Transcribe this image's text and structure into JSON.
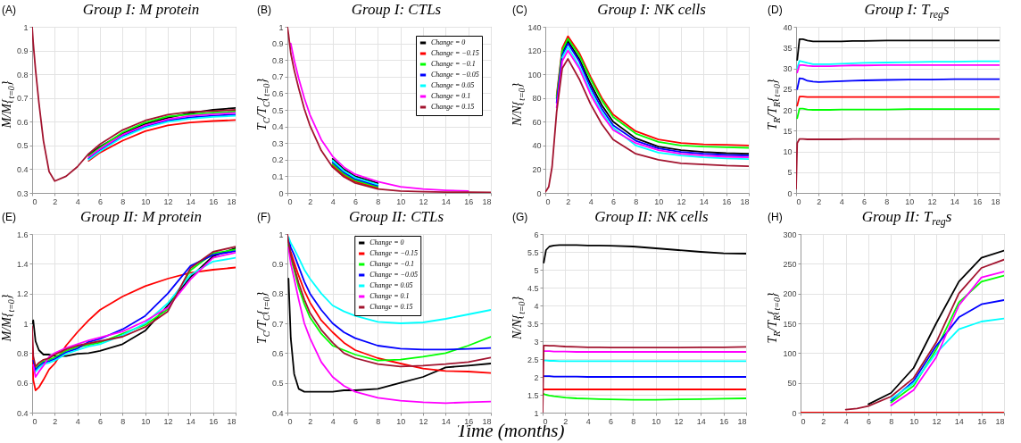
{
  "chart_data": [
    {
      "type": "line",
      "title": "Group I: M protein",
      "ylabel": "M/M{$_{t=0}$}",
      "annotations": [
        "(A)"
      ],
      "x": [
        0,
        0.1,
        0.3,
        0.6,
        1,
        1.5,
        2,
        3,
        4,
        5,
        6,
        8,
        10,
        12,
        14,
        16,
        18
      ],
      "xlim": [
        0,
        18
      ],
      "xticks": [
        0,
        2,
        4,
        6,
        8,
        10,
        12,
        14,
        16,
        18
      ],
      "ylim": [
        0.3,
        1
      ],
      "yticks": [
        0.3,
        0.4,
        0.5,
        0.6,
        0.7,
        0.8,
        0.9,
        1
      ],
      "grid": true,
      "series": [
        {
          "color": "#000000",
          "values": [
            null,
            null,
            null,
            null,
            null,
            null,
            null,
            null,
            null,
            0.46,
            0.495,
            0.55,
            0.59,
            0.617,
            0.636,
            0.65,
            0.658
          ]
        },
        {
          "color": "#ff0000",
          "values": [
            null,
            null,
            null,
            null,
            null,
            null,
            null,
            null,
            null,
            0.435,
            0.47,
            0.52,
            0.56,
            0.585,
            0.597,
            0.603,
            0.607
          ]
        },
        {
          "color": "#00ff00",
          "values": [
            null,
            null,
            null,
            null,
            null,
            null,
            null,
            null,
            null,
            0.455,
            0.49,
            0.555,
            0.597,
            0.622,
            0.631,
            0.638,
            0.643
          ]
        },
        {
          "color": "#0000ff",
          "values": [
            null,
            null,
            null,
            null,
            null,
            null,
            null,
            null,
            null,
            0.445,
            0.48,
            0.54,
            0.58,
            0.605,
            0.618,
            0.625,
            0.63
          ]
        },
        {
          "color": "#00ffff",
          "values": [
            null,
            null,
            null,
            null,
            null,
            null,
            null,
            null,
            null,
            0.44,
            0.475,
            0.535,
            0.575,
            0.6,
            0.613,
            0.62,
            0.625
          ]
        },
        {
          "color": "#ff00ff",
          "values": [
            null,
            null,
            null,
            null,
            null,
            null,
            null,
            null,
            null,
            0.45,
            0.485,
            0.545,
            0.585,
            0.61,
            0.625,
            0.632,
            0.637
          ]
        },
        {
          "color": "#a2142f",
          "values": [
            1,
            0.93,
            0.82,
            0.68,
            0.52,
            0.39,
            0.35,
            0.37,
            0.41,
            0.465,
            0.505,
            0.565,
            0.605,
            0.63,
            0.642,
            0.645,
            0.65
          ]
        }
      ]
    },
    {
      "type": "line",
      "title": "Group I: CTLs",
      "ylabel": "T$_{C}$/T$_{C}${$_{t=0}$}",
      "annotations": [
        "(B)"
      ],
      "x": [
        0,
        0.1,
        0.3,
        0.6,
        1,
        1.5,
        2,
        3,
        4,
        5,
        6,
        8,
        10,
        12,
        14,
        16,
        18
      ],
      "xlim": [
        0,
        18
      ],
      "xticks": [
        0,
        2,
        4,
        6,
        8,
        10,
        12,
        14,
        16,
        18
      ],
      "ylim": [
        0,
        1
      ],
      "yticks": [
        0,
        0.1,
        0.2,
        0.3,
        0.4,
        0.5,
        0.6,
        0.7,
        0.8,
        0.9,
        1
      ],
      "grid": true,
      "legend": "top right",
      "series": [
        {
          "name": "Change = 0",
          "color": "#000000",
          "values": [
            null,
            null,
            null,
            null,
            null,
            null,
            null,
            null,
            0.205,
            0.142,
            0.1,
            0.058,
            null,
            null,
            null,
            null,
            null
          ]
        },
        {
          "name": "Change = −0.15",
          "color": "#ff0000",
          "values": [
            null,
            null,
            null,
            null,
            null,
            null,
            null,
            null,
            0.165,
            0.106,
            0.068,
            0.03,
            null,
            null,
            null,
            null,
            null
          ]
        },
        {
          "name": "Change = −0.1",
          "color": "#00ff00",
          "values": [
            null,
            null,
            null,
            null,
            null,
            null,
            null,
            null,
            0.175,
            0.115,
            0.076,
            0.037,
            null,
            null,
            null,
            null,
            null
          ]
        },
        {
          "name": "Change = −0.05",
          "color": "#0000ff",
          "values": [
            null,
            null,
            null,
            null,
            null,
            null,
            null,
            null,
            0.185,
            0.124,
            0.084,
            0.044,
            null,
            null,
            null,
            null,
            null
          ]
        },
        {
          "name": "Change = 0.05",
          "color": "#00ffff",
          "values": [
            null,
            null,
            null,
            null,
            null,
            null,
            null,
            null,
            0.195,
            0.133,
            0.092,
            0.051,
            null,
            null,
            null,
            null,
            null
          ]
        },
        {
          "name": "Change = 0.1",
          "color": "#ff00ff",
          "values": [
            null,
            null,
            0.9,
            0.8,
            0.69,
            0.57,
            0.47,
            0.32,
            0.22,
            0.155,
            0.112,
            0.068,
            0.037,
            0.024,
            0.016,
            0.011,
            null
          ]
        },
        {
          "name": "Change = 0.15",
          "color": "#a2142f",
          "values": [
            1,
            0.955,
            0.84,
            0.74,
            0.63,
            0.505,
            0.405,
            0.255,
            0.155,
            0.097,
            0.06,
            0.023,
            0.011,
            0.007,
            0.005,
            0.004,
            0.003
          ]
        }
      ]
    },
    {
      "type": "line",
      "title": "Group I: NK cells",
      "ylabel": "N/N{$_{t=0}$}",
      "annotations": [
        "(C)"
      ],
      "x": [
        0,
        0.1,
        0.3,
        0.6,
        1,
        1.5,
        2,
        3,
        4,
        5,
        6,
        8,
        10,
        12,
        14,
        16,
        18
      ],
      "xlim": [
        0,
        18
      ],
      "xticks": [
        0,
        2,
        4,
        6,
        8,
        10,
        12,
        14,
        16,
        18
      ],
      "ylim": [
        0,
        140
      ],
      "yticks": [
        0,
        20,
        40,
        60,
        80,
        100,
        120,
        140
      ],
      "grid": true,
      "series": [
        {
          "color": "#000000",
          "values": [
            null,
            null,
            null,
            null,
            null,
            118,
            128,
            113,
            92,
            74,
            60,
            46,
            39,
            36,
            34.5,
            33.5,
            33
          ]
        },
        {
          "color": "#ff0000",
          "values": [
            null,
            null,
            null,
            null,
            82,
            122,
            132,
            118,
            98,
            80,
            66,
            52,
            45,
            42,
            41,
            40.5,
            40
          ]
        },
        {
          "color": "#00ff00",
          "values": [
            null,
            null,
            null,
            null,
            80,
            120,
            130,
            116,
            96,
            78,
            64,
            50,
            43,
            40,
            39,
            38.5,
            38
          ]
        },
        {
          "color": "#0000ff",
          "values": [
            null,
            null,
            null,
            null,
            76,
            116,
            126,
            111,
            89,
            71,
            57,
            44,
            37.5,
            34.5,
            33,
            32,
            31.5
          ]
        },
        {
          "color": "#00ffff",
          "values": [
            null,
            null,
            null,
            null,
            null,
            114,
            123,
            107,
            86,
            68,
            55,
            40,
            34,
            31.5,
            30,
            29,
            28.5
          ]
        },
        {
          "color": "#ff00ff",
          "values": [
            null,
            null,
            null,
            null,
            72,
            111,
            120,
            105,
            83,
            66,
            53,
            42,
            36,
            33,
            31.5,
            30.5,
            30
          ]
        },
        {
          "color": "#a2142f",
          "values": [
            1,
            2,
            5,
            22,
            68,
            105,
            113,
            96,
            75,
            58,
            45,
            33,
            28,
            25,
            24,
            23,
            22.5
          ]
        }
      ]
    },
    {
      "type": "line",
      "title": "Group I: T$_{reg}$s",
      "ylabel": "T$_{R}$/T$_{R}${$_{t=0}$}",
      "annotations": [
        "(D)"
      ],
      "x": [
        0,
        0.1,
        0.3,
        0.6,
        1,
        1.5,
        2,
        3,
        4,
        5,
        6,
        8,
        10,
        12,
        14,
        16,
        18
      ],
      "xlim": [
        0,
        18
      ],
      "xticks": [
        0,
        2,
        4,
        6,
        8,
        10,
        12,
        14,
        16,
        18
      ],
      "ylim": [
        0,
        40
      ],
      "yticks": [
        0,
        5,
        10,
        15,
        20,
        25,
        30,
        35,
        40
      ],
      "grid": true,
      "series": [
        {
          "color": "#000000",
          "values": [
            null,
            32,
            37,
            37,
            36.7,
            36.5,
            36.5,
            36.5,
            36.5,
            36.6,
            36.6,
            36.7,
            36.7,
            36.7,
            36.7,
            36.7,
            36.7
          ]
        },
        {
          "color": "#ff0000",
          "values": [
            null,
            21,
            23.2,
            23.2,
            23.1,
            23.1,
            23.1,
            23.1,
            23.1,
            23.1,
            23.1,
            23.1,
            23.1,
            23.1,
            23.1,
            23.1,
            23.1
          ]
        },
        {
          "color": "#00ff00",
          "values": [
            null,
            18,
            20.3,
            20.3,
            20.1,
            20,
            20,
            20,
            20.1,
            20.1,
            20.1,
            20.1,
            20.2,
            20.2,
            20.2,
            20.2,
            20.2
          ]
        },
        {
          "color": "#0000ff",
          "values": [
            null,
            25,
            27.6,
            27.5,
            27,
            26.8,
            26.7,
            26.8,
            26.9,
            27,
            27.1,
            27.2,
            27.3,
            27.3,
            27.4,
            27.4,
            27.4
          ]
        },
        {
          "color": "#00ffff",
          "values": [
            null,
            30,
            31.8,
            31.6,
            31.3,
            31,
            31,
            31,
            31.1,
            31.2,
            31.3,
            31.4,
            31.5,
            31.6,
            31.6,
            31.7,
            31.7
          ]
        },
        {
          "color": "#ff00ff",
          "values": [
            null,
            29,
            30.8,
            30.8,
            30.6,
            30.5,
            30.5,
            30.5,
            30.6,
            30.7,
            30.7,
            30.8,
            30.8,
            30.8,
            30.8,
            30.8,
            30.8
          ]
        },
        {
          "color": "#a2142f",
          "values": [
            1,
            12,
            13,
            13,
            12.9,
            12.9,
            12.9,
            12.9,
            12.9,
            13,
            13,
            13,
            13,
            13,
            13,
            13,
            13
          ]
        }
      ]
    },
    {
      "type": "line",
      "title": "Group II: M protein",
      "ylabel": "M/M{$_{t=0}$}",
      "annotations": [
        "(E)"
      ],
      "x": [
        0,
        0.1,
        0.3,
        0.6,
        1,
        1.5,
        2,
        3,
        4,
        5,
        6,
        8,
        10,
        12,
        14,
        16,
        18
      ],
      "xlim": [
        0,
        18
      ],
      "xticks": [
        0,
        2,
        4,
        6,
        8,
        10,
        12,
        14,
        16,
        18
      ],
      "ylim": [
        0.4,
        1.6
      ],
      "yticks": [
        0.4,
        0.6,
        0.8,
        1,
        1.2,
        1.4,
        1.6
      ],
      "grid": true,
      "series": [
        {
          "color": "#000000",
          "values": [
            1,
            1.02,
            0.88,
            0.82,
            0.79,
            0.79,
            0.78,
            0.78,
            0.795,
            0.8,
            0.815,
            0.86,
            0.95,
            1.12,
            1.31,
            1.45,
            1.505
          ]
        },
        {
          "color": "#ff0000",
          "values": [
            0.9,
            0.62,
            0.55,
            0.57,
            0.62,
            0.69,
            0.73,
            0.85,
            0.94,
            1.02,
            1.09,
            1.18,
            1.25,
            1.3,
            1.34,
            1.36,
            1.375
          ]
        },
        {
          "color": "#00ff00",
          "values": [
            null,
            null,
            0.695,
            0.72,
            0.745,
            0.755,
            0.77,
            0.815,
            0.84,
            0.855,
            0.87,
            0.93,
            0.99,
            1.095,
            1.355,
            1.47,
            1.495
          ]
        },
        {
          "color": "#0000ff",
          "values": [
            null,
            0.75,
            0.685,
            0.71,
            0.735,
            0.745,
            0.76,
            0.805,
            0.83,
            0.875,
            0.895,
            0.96,
            1.05,
            1.2,
            1.385,
            1.46,
            1.485
          ]
        },
        {
          "color": "#00ffff",
          "values": [
            null,
            null,
            0.675,
            0.7,
            0.725,
            0.735,
            0.75,
            0.795,
            0.82,
            0.845,
            0.86,
            0.92,
            1,
            1.135,
            1.325,
            1.415,
            1.44
          ]
        },
        {
          "color": "#ff00ff",
          "values": [
            null,
            0.72,
            0.64,
            0.675,
            0.715,
            0.775,
            0.8,
            0.835,
            0.86,
            0.885,
            0.905,
            0.945,
            1.015,
            1.105,
            1.295,
            1.44,
            1.475
          ]
        },
        {
          "color": "#a2142f",
          "values": [
            0.98,
            0.78,
            0.71,
            0.735,
            0.755,
            0.765,
            0.79,
            0.825,
            0.85,
            0.865,
            0.88,
            0.91,
            0.975,
            1.08,
            1.37,
            1.48,
            1.515
          ]
        }
      ]
    },
    {
      "type": "line",
      "title": "Group II: CTLs",
      "ylabel": "T$_{C}$/T$_{C}${$_{t=0}$}",
      "xlabel": "Time (months)",
      "annotations": [
        "(F)"
      ],
      "x": [
        0,
        0.1,
        0.3,
        0.6,
        1,
        1.5,
        2,
        3,
        4,
        5,
        6,
        8,
        10,
        12,
        14,
        16,
        18
      ],
      "xlim": [
        0,
        18
      ],
      "xticks": [
        0,
        2,
        4,
        6,
        8,
        10,
        12,
        14,
        16,
        18
      ],
      "ylim": [
        0.4,
        1
      ],
      "yticks": [
        0.4,
        0.5,
        0.6,
        0.7,
        0.8,
        0.9,
        1
      ],
      "grid": true,
      "legend": "top",
      "series": [
        {
          "name": "Change = 0",
          "color": "#000000",
          "values": [
            null,
            0.85,
            0.65,
            0.53,
            0.48,
            0.47,
            0.47,
            0.47,
            0.47,
            0.475,
            0.475,
            0.48,
            0.5,
            0.52,
            0.552,
            0.558,
            0.565
          ]
        },
        {
          "name": "Change = −0.15",
          "color": "#ff0000",
          "values": [
            null,
            0.978,
            0.94,
            0.905,
            0.86,
            0.81,
            0.77,
            0.71,
            0.67,
            0.635,
            0.61,
            0.583,
            0.565,
            0.548,
            0.54,
            0.538,
            0.533
          ]
        },
        {
          "name": "Change = −0.1",
          "color": "#00ff00",
          "values": [
            null,
            0.964,
            0.92,
            0.88,
            0.82,
            0.765,
            0.72,
            0.665,
            0.625,
            0.61,
            0.595,
            0.575,
            0.578,
            0.588,
            0.6,
            0.625,
            0.655
          ]
        },
        {
          "name": "Change = −0.05",
          "color": "#0000ff",
          "values": [
            null,
            0.985,
            0.955,
            0.93,
            0.89,
            0.84,
            0.8,
            0.745,
            0.7,
            0.67,
            0.65,
            0.625,
            0.615,
            0.612,
            0.612,
            0.614,
            0.617
          ]
        },
        {
          "name": "Change = 0.05",
          "color": "#00ffff",
          "values": [
            null,
            0.99,
            0.97,
            0.95,
            0.92,
            0.88,
            0.85,
            0.8,
            0.76,
            0.74,
            0.725,
            0.705,
            0.7,
            0.703,
            0.715,
            0.73,
            0.745
          ]
        },
        {
          "name": "Change = 0.1",
          "color": "#ff00ff",
          "values": [
            null,
            0.955,
            0.9,
            0.85,
            0.78,
            0.7,
            0.65,
            0.57,
            0.52,
            0.49,
            0.47,
            0.45,
            0.44,
            0.435,
            0.432,
            0.435,
            0.437
          ]
        },
        {
          "name": "Change = 0.15",
          "color": "#a2142f",
          "values": [
            1,
            0.971,
            0.93,
            0.89,
            0.835,
            0.78,
            0.735,
            0.678,
            0.635,
            0.6,
            0.583,
            0.563,
            0.555,
            0.558,
            0.563,
            0.57,
            0.585
          ]
        }
      ]
    },
    {
      "type": "line",
      "title": "Group II: NK cells",
      "ylabel": "N/N{$_{t=0}$}",
      "annotations": [
        "(G)"
      ],
      "x": [
        0,
        0.1,
        0.3,
        0.6,
        1,
        1.5,
        2,
        3,
        4,
        5,
        6,
        8,
        10,
        12,
        14,
        16,
        18
      ],
      "xlim": [
        0,
        18
      ],
      "xticks": [
        0,
        2,
        4,
        6,
        8,
        10,
        12,
        14,
        16,
        18
      ],
      "ylim": [
        1,
        6
      ],
      "yticks": [
        1,
        1.5,
        2,
        2.5,
        3,
        3.5,
        4,
        4.5,
        5,
        5.5,
        6
      ],
      "grid": true,
      "series": [
        {
          "color": "#000000",
          "values": [
            null,
            5.2,
            5.55,
            5.65,
            5.68,
            5.69,
            5.69,
            5.69,
            5.68,
            5.68,
            5.67,
            5.65,
            5.6,
            5.55,
            5.5,
            5.46,
            5.45
          ]
        },
        {
          "color": "#ff0000",
          "values": [
            null,
            1.65,
            1.65,
            1.65,
            1.65,
            1.65,
            1.65,
            1.65,
            1.65,
            1.65,
            1.65,
            1.65,
            1.65,
            1.65,
            1.65,
            1.65,
            1.65
          ]
        },
        {
          "color": "#00ff00",
          "values": [
            null,
            1.52,
            1.5,
            1.48,
            1.46,
            1.44,
            1.42,
            1.4,
            1.39,
            1.38,
            1.37,
            1.36,
            1.36,
            1.37,
            1.38,
            1.39,
            1.4
          ]
        },
        {
          "color": "#0000ff",
          "values": [
            null,
            2.02,
            2.02,
            2.02,
            2.01,
            2.01,
            2.01,
            2.01,
            2,
            2,
            2,
            2,
            2,
            2,
            2,
            2,
            2
          ]
        },
        {
          "color": "#00ffff",
          "values": [
            null,
            2.46,
            2.46,
            2.45,
            2.45,
            2.44,
            2.44,
            2.44,
            2.44,
            2.44,
            2.44,
            2.44,
            2.44,
            2.44,
            2.44,
            2.44,
            2.44
          ]
        },
        {
          "color": "#ff00ff",
          "values": [
            null,
            2.72,
            2.72,
            2.72,
            2.71,
            2.71,
            2.71,
            2.7,
            2.7,
            2.7,
            2.7,
            2.7,
            2.7,
            2.7,
            2.7,
            2.7,
            2.7
          ]
        },
        {
          "color": "#a2142f",
          "values": [
            1,
            2.88,
            2.88,
            2.87,
            2.87,
            2.86,
            2.85,
            2.84,
            2.83,
            2.83,
            2.82,
            2.82,
            2.82,
            2.82,
            2.83,
            2.83,
            2.84
          ]
        }
      ]
    },
    {
      "type": "line",
      "title": "Group II: T$_{reg}$s",
      "ylabel": "T$_{R}$/T$_{R}${$_{t=0}$}",
      "annotations": [
        "(H)"
      ],
      "x": [
        0,
        0.1,
        0.3,
        0.6,
        1,
        1.5,
        2,
        3,
        4,
        5,
        6,
        8,
        10,
        12,
        14,
        16,
        18
      ],
      "xlim": [
        0,
        18
      ],
      "xticks": [
        0,
        2,
        4,
        6,
        8,
        10,
        12,
        14,
        16,
        18
      ],
      "ylim": [
        0,
        300
      ],
      "yticks": [
        0,
        50,
        100,
        150,
        200,
        250,
        300
      ],
      "grid": true,
      "series": [
        {
          "color": "#000000",
          "values": [
            null,
            null,
            null,
            null,
            null,
            null,
            null,
            null,
            null,
            null,
            14,
            33,
            75,
            150,
            220,
            260,
            272
          ]
        },
        {
          "color": "#ff0000",
          "values": [
            0,
            0,
            0,
            0,
            0,
            0,
            0,
            0,
            0,
            0,
            0,
            0,
            0,
            0,
            0,
            0,
            0
          ]
        },
        {
          "color": "#00ff00",
          "values": [
            null,
            null,
            null,
            null,
            null,
            null,
            null,
            null,
            null,
            null,
            null,
            17,
            45,
            106,
            185,
            220,
            230
          ]
        },
        {
          "color": "#0000ff",
          "values": [
            null,
            null,
            null,
            null,
            null,
            null,
            null,
            null,
            null,
            null,
            null,
            20,
            53,
            112,
            160,
            182,
            189
          ]
        },
        {
          "color": "#00ffff",
          "values": [
            null,
            null,
            null,
            null,
            null,
            null,
            null,
            null,
            null,
            null,
            null,
            23,
            49,
            100,
            140,
            153,
            158
          ]
        },
        {
          "color": "#ff00ff",
          "values": [
            null,
            null,
            null,
            null,
            null,
            null,
            null,
            null,
            null,
            null,
            null,
            12,
            38,
            93,
            180,
            227,
            237
          ]
        },
        {
          "color": "#a2142f",
          "values": [
            null,
            null,
            null,
            null,
            null,
            null,
            null,
            null,
            5,
            7,
            11,
            27,
            58,
            118,
            200,
            243,
            257
          ]
        }
      ]
    }
  ]
}
